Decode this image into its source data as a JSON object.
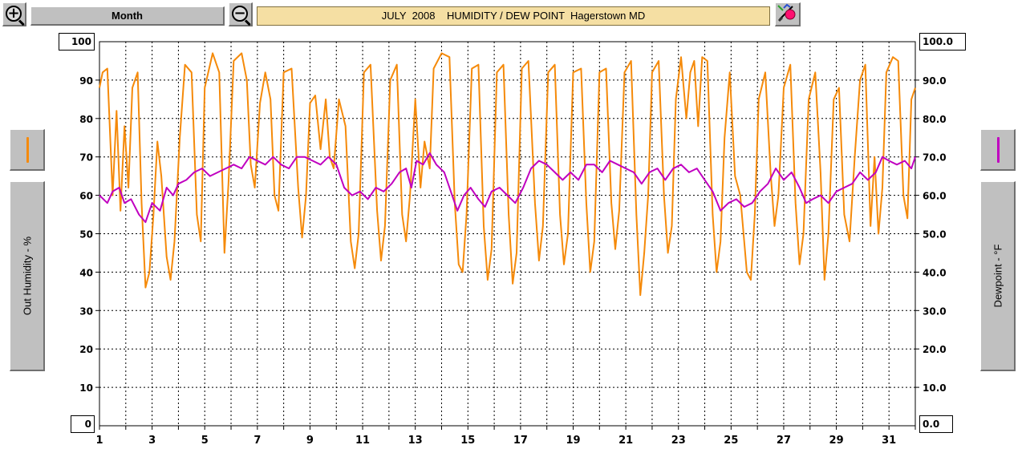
{
  "toolbar": {
    "zoom_in_icon": "zoom-in-icon",
    "zoom_out_icon": "zoom-out-icon",
    "period_label": "Month",
    "title": "JULY  2008    HUMIDITY / DEW POINT  Hagerstown MD",
    "print_icon": "printer-icon"
  },
  "left_axis": {
    "button_label": "Out Humidity - %",
    "max_box": "100",
    "min_box": "0",
    "legend_color": "#f58a0a"
  },
  "right_axis": {
    "button_label": "Dewpoint - °F",
    "max_box": "100.0",
    "min_box": "0.0",
    "legend_color": "#c000c0"
  },
  "chart_data": {
    "type": "line",
    "xlim": [
      1,
      32
    ],
    "x_tick_labels": [
      "1",
      "3",
      "5",
      "7",
      "9",
      "11",
      "13",
      "15",
      "17",
      "19",
      "21",
      "23",
      "25",
      "27",
      "29",
      "31"
    ],
    "y_left": {
      "label": "Out Humidity - %",
      "range": [
        0,
        100
      ],
      "ticks": [
        "10",
        "20",
        "30",
        "40",
        "50",
        "60",
        "70",
        "80",
        "90"
      ]
    },
    "y_right": {
      "label": "Dewpoint - °F",
      "range": [
        0,
        100
      ],
      "ticks": [
        "10.0",
        "20.0",
        "30.0",
        "40.0",
        "50.0",
        "60.0",
        "70.0",
        "80.0",
        "90.0"
      ]
    },
    "grid": true,
    "series": [
      {
        "axis": "left",
        "color": "#f58a0a",
        "points": [
          [
            1.0,
            88
          ],
          [
            1.12,
            92
          ],
          [
            1.3,
            93
          ],
          [
            1.5,
            60
          ],
          [
            1.65,
            82
          ],
          [
            1.8,
            56
          ],
          [
            1.95,
            78
          ],
          [
            2.1,
            62
          ],
          [
            2.25,
            88
          ],
          [
            2.45,
            92
          ],
          [
            2.6,
            58
          ],
          [
            2.75,
            36
          ],
          [
            2.9,
            40
          ],
          [
            3.05,
            55
          ],
          [
            3.2,
            74
          ],
          [
            3.35,
            65
          ],
          [
            3.55,
            44
          ],
          [
            3.7,
            38
          ],
          [
            3.85,
            48
          ],
          [
            4.05,
            75
          ],
          [
            4.25,
            94
          ],
          [
            4.5,
            92
          ],
          [
            4.7,
            55
          ],
          [
            4.85,
            48
          ],
          [
            5.0,
            88
          ],
          [
            5.3,
            97
          ],
          [
            5.55,
            92
          ],
          [
            5.75,
            45
          ],
          [
            5.9,
            63
          ],
          [
            6.1,
            95
          ],
          [
            6.4,
            97
          ],
          [
            6.6,
            90
          ],
          [
            6.75,
            68
          ],
          [
            6.9,
            62
          ],
          [
            7.1,
            84
          ],
          [
            7.3,
            92
          ],
          [
            7.5,
            85
          ],
          [
            7.65,
            60
          ],
          [
            7.8,
            56
          ],
          [
            8.0,
            92
          ],
          [
            8.3,
            93
          ],
          [
            8.55,
            62
          ],
          [
            8.7,
            49
          ],
          [
            8.85,
            60
          ],
          [
            9.0,
            84
          ],
          [
            9.2,
            86
          ],
          [
            9.4,
            72
          ],
          [
            9.6,
            85
          ],
          [
            9.75,
            70
          ],
          [
            9.9,
            67
          ],
          [
            10.1,
            85
          ],
          [
            10.35,
            78
          ],
          [
            10.55,
            48
          ],
          [
            10.7,
            41
          ],
          [
            10.85,
            50
          ],
          [
            11.05,
            92
          ],
          [
            11.3,
            94
          ],
          [
            11.55,
            56
          ],
          [
            11.7,
            43
          ],
          [
            11.85,
            52
          ],
          [
            12.05,
            90
          ],
          [
            12.3,
            94
          ],
          [
            12.5,
            55
          ],
          [
            12.65,
            48
          ],
          [
            12.8,
            60
          ],
          [
            13.0,
            85
          ],
          [
            13.2,
            62
          ],
          [
            13.35,
            74
          ],
          [
            13.55,
            67
          ],
          [
            13.7,
            93
          ],
          [
            14.0,
            97
          ],
          [
            14.3,
            96
          ],
          [
            14.5,
            58
          ],
          [
            14.65,
            42
          ],
          [
            14.8,
            40
          ],
          [
            14.95,
            55
          ],
          [
            15.15,
            93
          ],
          [
            15.4,
            94
          ],
          [
            15.6,
            52
          ],
          [
            15.75,
            38
          ],
          [
            15.9,
            46
          ],
          [
            16.1,
            92
          ],
          [
            16.35,
            94
          ],
          [
            16.55,
            55
          ],
          [
            16.7,
            37
          ],
          [
            16.85,
            45
          ],
          [
            17.05,
            93
          ],
          [
            17.3,
            95
          ],
          [
            17.55,
            58
          ],
          [
            17.7,
            43
          ],
          [
            17.85,
            52
          ],
          [
            18.05,
            92
          ],
          [
            18.3,
            94
          ],
          [
            18.5,
            55
          ],
          [
            18.65,
            42
          ],
          [
            18.8,
            50
          ],
          [
            19.0,
            92
          ],
          [
            19.3,
            93
          ],
          [
            19.5,
            58
          ],
          [
            19.65,
            40
          ],
          [
            19.8,
            48
          ],
          [
            20.0,
            92
          ],
          [
            20.25,
            93
          ],
          [
            20.45,
            58
          ],
          [
            20.6,
            46
          ],
          [
            20.75,
            56
          ],
          [
            20.95,
            92
          ],
          [
            21.2,
            95
          ],
          [
            21.4,
            55
          ],
          [
            21.55,
            34
          ],
          [
            21.7,
            45
          ],
          [
            21.85,
            60
          ],
          [
            22.0,
            92
          ],
          [
            22.25,
            95
          ],
          [
            22.45,
            60
          ],
          [
            22.6,
            45
          ],
          [
            22.75,
            52
          ],
          [
            22.9,
            85
          ],
          [
            23.1,
            96
          ],
          [
            23.3,
            80
          ],
          [
            23.45,
            92
          ],
          [
            23.6,
            95
          ],
          [
            23.75,
            78
          ],
          [
            23.9,
            96
          ],
          [
            24.1,
            95
          ],
          [
            24.3,
            55
          ],
          [
            24.45,
            40
          ],
          [
            24.6,
            48
          ],
          [
            24.75,
            75
          ],
          [
            24.95,
            92
          ],
          [
            25.15,
            65
          ],
          [
            25.35,
            60
          ],
          [
            25.6,
            40
          ],
          [
            25.75,
            38
          ],
          [
            25.9,
            55
          ],
          [
            26.05,
            85
          ],
          [
            26.3,
            92
          ],
          [
            26.5,
            66
          ],
          [
            26.65,
            52
          ],
          [
            26.8,
            60
          ],
          [
            27.0,
            88
          ],
          [
            27.25,
            94
          ],
          [
            27.45,
            58
          ],
          [
            27.6,
            42
          ],
          [
            27.75,
            50
          ],
          [
            27.95,
            85
          ],
          [
            28.2,
            92
          ],
          [
            28.4,
            66
          ],
          [
            28.55,
            38
          ],
          [
            28.7,
            50
          ],
          [
            28.9,
            85
          ],
          [
            29.1,
            88
          ],
          [
            29.3,
            55
          ],
          [
            29.5,
            48
          ],
          [
            29.7,
            70
          ],
          [
            29.9,
            90
          ],
          [
            30.1,
            94
          ],
          [
            30.3,
            52
          ],
          [
            30.45,
            70
          ],
          [
            30.6,
            50
          ],
          [
            30.75,
            62
          ],
          [
            30.9,
            92
          ],
          [
            31.15,
            96
          ],
          [
            31.35,
            95
          ],
          [
            31.55,
            60
          ],
          [
            31.7,
            54
          ],
          [
            31.85,
            85
          ],
          [
            32.0,
            88
          ]
        ]
      },
      {
        "axis": "right",
        "color": "#c000c0",
        "points": [
          [
            1.0,
            60
          ],
          [
            1.3,
            58
          ],
          [
            1.5,
            61
          ],
          [
            1.75,
            62
          ],
          [
            1.95,
            58
          ],
          [
            2.2,
            59
          ],
          [
            2.5,
            55
          ],
          [
            2.75,
            53
          ],
          [
            3.0,
            58
          ],
          [
            3.3,
            56
          ],
          [
            3.55,
            62
          ],
          [
            3.8,
            60
          ],
          [
            4.0,
            63
          ],
          [
            4.3,
            64
          ],
          [
            4.6,
            66
          ],
          [
            4.9,
            67
          ],
          [
            5.2,
            65
          ],
          [
            5.5,
            66
          ],
          [
            5.8,
            67
          ],
          [
            6.1,
            68
          ],
          [
            6.4,
            67
          ],
          [
            6.7,
            70
          ],
          [
            7.0,
            69
          ],
          [
            7.3,
            68
          ],
          [
            7.6,
            70
          ],
          [
            7.9,
            68
          ],
          [
            8.2,
            67
          ],
          [
            8.5,
            70
          ],
          [
            8.8,
            70
          ],
          [
            9.1,
            69
          ],
          [
            9.4,
            68
          ],
          [
            9.7,
            70
          ],
          [
            10.0,
            68
          ],
          [
            10.3,
            62
          ],
          [
            10.6,
            60
          ],
          [
            10.9,
            61
          ],
          [
            11.2,
            59
          ],
          [
            11.5,
            62
          ],
          [
            11.8,
            61
          ],
          [
            12.1,
            63
          ],
          [
            12.4,
            66
          ],
          [
            12.65,
            67
          ],
          [
            12.85,
            62
          ],
          [
            13.05,
            69
          ],
          [
            13.3,
            68
          ],
          [
            13.55,
            71
          ],
          [
            13.8,
            68
          ],
          [
            14.1,
            66
          ],
          [
            14.4,
            60
          ],
          [
            14.6,
            56
          ],
          [
            14.85,
            60
          ],
          [
            15.1,
            62
          ],
          [
            15.4,
            59
          ],
          [
            15.65,
            57
          ],
          [
            15.9,
            61
          ],
          [
            16.2,
            62
          ],
          [
            16.5,
            60
          ],
          [
            16.8,
            58
          ],
          [
            17.1,
            62
          ],
          [
            17.4,
            67
          ],
          [
            17.7,
            69
          ],
          [
            18.0,
            68
          ],
          [
            18.3,
            66
          ],
          [
            18.6,
            64
          ],
          [
            18.9,
            66
          ],
          [
            19.2,
            64
          ],
          [
            19.5,
            68
          ],
          [
            19.8,
            68
          ],
          [
            20.1,
            66
          ],
          [
            20.4,
            69
          ],
          [
            20.7,
            68
          ],
          [
            21.0,
            67
          ],
          [
            21.3,
            66
          ],
          [
            21.6,
            63
          ],
          [
            21.9,
            66
          ],
          [
            22.2,
            67
          ],
          [
            22.5,
            64
          ],
          [
            22.8,
            67
          ],
          [
            23.1,
            68
          ],
          [
            23.4,
            66
          ],
          [
            23.7,
            67
          ],
          [
            24.0,
            64
          ],
          [
            24.3,
            61
          ],
          [
            24.6,
            56
          ],
          [
            24.9,
            58
          ],
          [
            25.2,
            59
          ],
          [
            25.5,
            57
          ],
          [
            25.8,
            58
          ],
          [
            26.1,
            61
          ],
          [
            26.4,
            63
          ],
          [
            26.7,
            67
          ],
          [
            27.0,
            64
          ],
          [
            27.3,
            66
          ],
          [
            27.6,
            62
          ],
          [
            27.85,
            58
          ],
          [
            28.1,
            59
          ],
          [
            28.4,
            60
          ],
          [
            28.7,
            58
          ],
          [
            29.0,
            61
          ],
          [
            29.3,
            62
          ],
          [
            29.6,
            63
          ],
          [
            29.9,
            66
          ],
          [
            30.2,
            64
          ],
          [
            30.5,
            66
          ],
          [
            30.75,
            70
          ],
          [
            31.0,
            69
          ],
          [
            31.3,
            68
          ],
          [
            31.6,
            69
          ],
          [
            31.85,
            67
          ],
          [
            32.0,
            70
          ]
        ]
      }
    ]
  }
}
